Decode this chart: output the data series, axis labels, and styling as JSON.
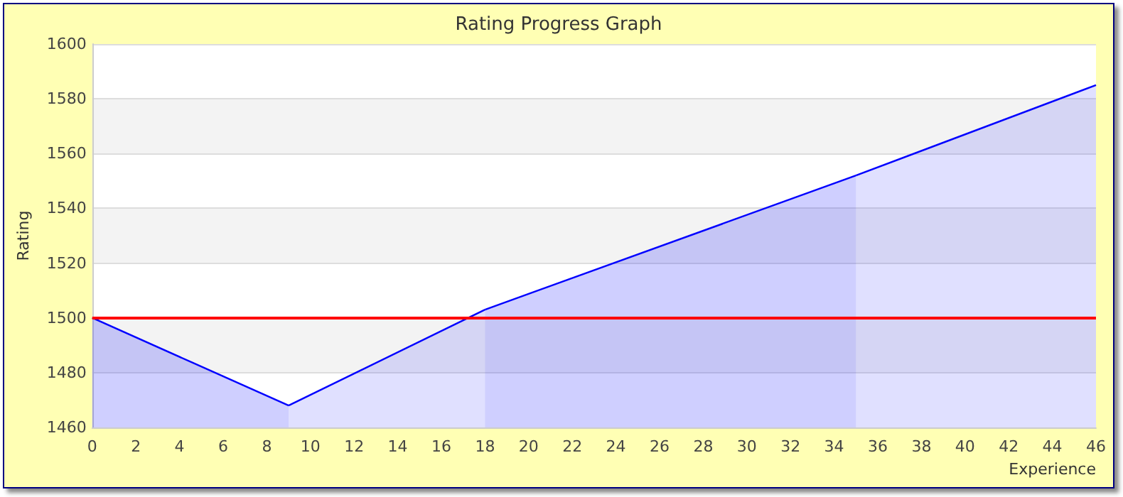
{
  "chart_data": {
    "type": "area",
    "title": "Rating Progress Graph",
    "xlabel": "Experience",
    "ylabel": "Rating",
    "series": [
      {
        "color": "#0000ff",
        "x": [
          0,
          9
        ],
        "values": [
          1500,
          1468
        ]
      },
      {
        "color": "#0000ff",
        "x": [
          9,
          18
        ],
        "values": [
          1468,
          1503
        ]
      },
      {
        "color": "#0000ff",
        "x": [
          18,
          35
        ],
        "values": [
          1503,
          1552
        ]
      },
      {
        "color": "#0000ff",
        "x": [
          35,
          46
        ],
        "values": [
          1552,
          1585
        ]
      }
    ],
    "xlim": [
      0,
      46
    ],
    "xticks": [
      0,
      2,
      4,
      6,
      8,
      10,
      12,
      14,
      16,
      18,
      20,
      22,
      24,
      26,
      28,
      30,
      32,
      34,
      36,
      38,
      40,
      42,
      44,
      46
    ],
    "ylim": [
      1460,
      1600
    ],
    "yticks": [
      1460,
      1480,
      1500,
      1520,
      1540,
      1560,
      1580,
      1600
    ],
    "grid": "y",
    "ref_lines": [
      {
        "axis": "y",
        "value": 1500,
        "color": "#ff0000"
      }
    ]
  }
}
